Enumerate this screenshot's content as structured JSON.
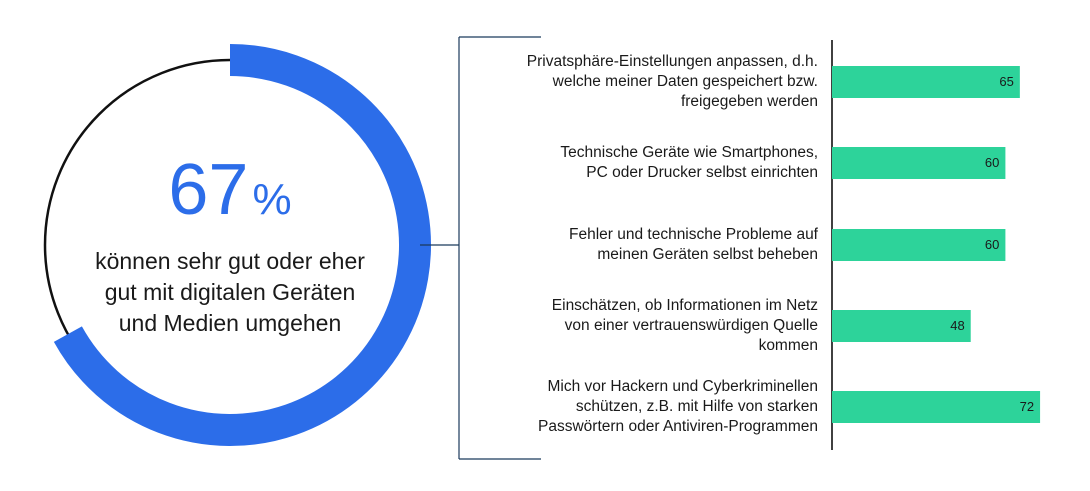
{
  "colors": {
    "accent": "#2c6de9",
    "bar": "#2dd39a",
    "ring_rest": "#111111",
    "line": "#1b3a5c"
  },
  "donut": {
    "percent": "67",
    "percent_sign": "%",
    "text_lines": [
      "können sehr gut oder eher",
      "gut mit digitalen Geräten",
      "und Medien umgehen"
    ]
  },
  "chart_data": [
    {
      "type": "pie",
      "values": [
        67,
        33
      ],
      "center_label": "67%"
    },
    {
      "type": "bar",
      "orientation": "horizontal",
      "categories": [
        "Privatsphäre-Einstellungen anpassen, d.h. welche meiner Daten gespeichert bzw. freigegeben werden",
        "Technische Geräte wie Smartphones, PC oder Drucker selbst einrichten",
        "Fehler und technische Probleme auf meinen Geräten selbst beheben",
        "Einschätzen, ob Informationen im Netz von einer vertrauenswürdigen Quelle kommen",
        "Mich vor Hackern und Cyberkriminellen schützen, z.B. mit Hilfe von starken Passwörtern oder Antiviren-Programmen"
      ],
      "category_lines": [
        [
          "Privatsphäre-Einstellungen anpassen, d.h.",
          "welche meiner Daten gespeichert bzw.",
          "freigegeben werden"
        ],
        [
          "Technische Geräte wie Smartphones,",
          "PC oder Drucker selbst einrichten"
        ],
        [
          "Fehler und technische Probleme auf",
          "meinen Geräten selbst beheben"
        ],
        [
          "Einschätzen, ob Informationen im Netz",
          "von einer vertrauenswürdigen Quelle",
          "kommen"
        ],
        [
          "Mich vor Hackern und Cyberkriminellen",
          "schützen, z.B. mit Hilfe von starken",
          "Passwörtern oder Antiviren-Programmen"
        ]
      ],
      "values": [
        65,
        60,
        60,
        48,
        72
      ],
      "data_labels": [
        "65",
        "60",
        "60",
        "48",
        "72"
      ],
      "xlim": [
        0,
        75
      ],
      "grid": false
    }
  ]
}
